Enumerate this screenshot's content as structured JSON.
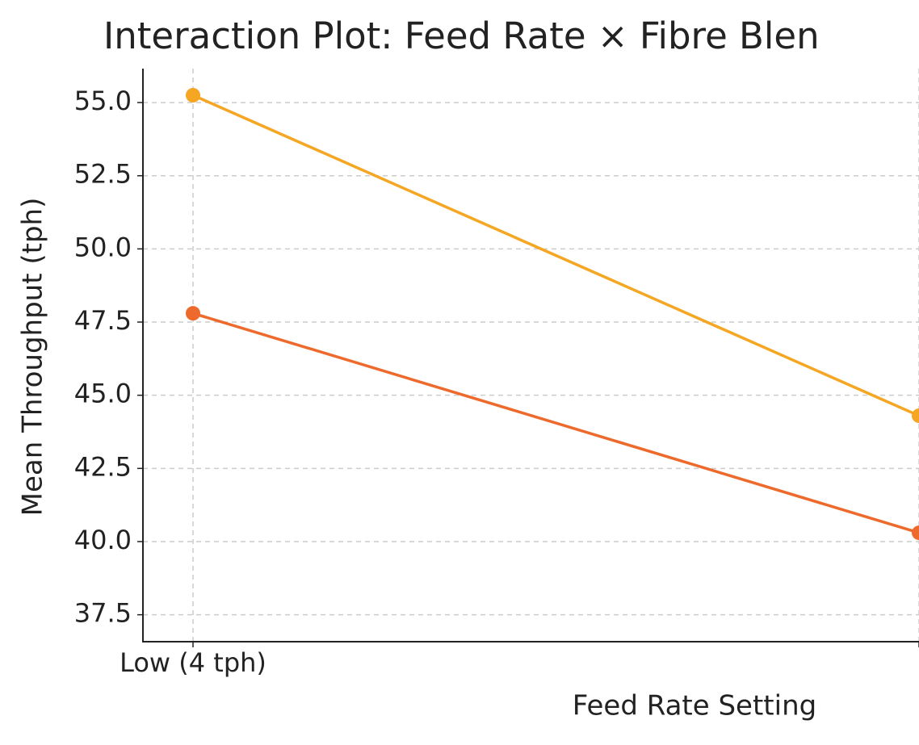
{
  "chart_data": {
    "type": "line",
    "title": "Interaction Plot: Feed Rate × Fibre Blen",
    "x_label": "Feed Rate Setting",
    "y_label": "Mean Throughput (tph)",
    "categories": [
      "Low (4 tph)",
      null
    ],
    "series": [
      {
        "color": "#f5a623",
        "values": [
          55.25,
          44.3
        ]
      },
      {
        "color": "#ee6a2c",
        "values": [
          47.8,
          40.3
        ]
      }
    ],
    "ylim": [
      36.58,
      56.16
    ],
    "yticks": [
      {
        "value": 37.5,
        "label": "37.5"
      },
      {
        "value": 40,
        "label": "40.0"
      },
      42.5,
      {
        "value": 45,
        "label": "45.0"
      },
      47.5,
      {
        "value": 50,
        "label": "50.0"
      },
      52.5,
      {
        "value": 55,
        "label": "55.0"
      }
    ],
    "grid": true
  }
}
